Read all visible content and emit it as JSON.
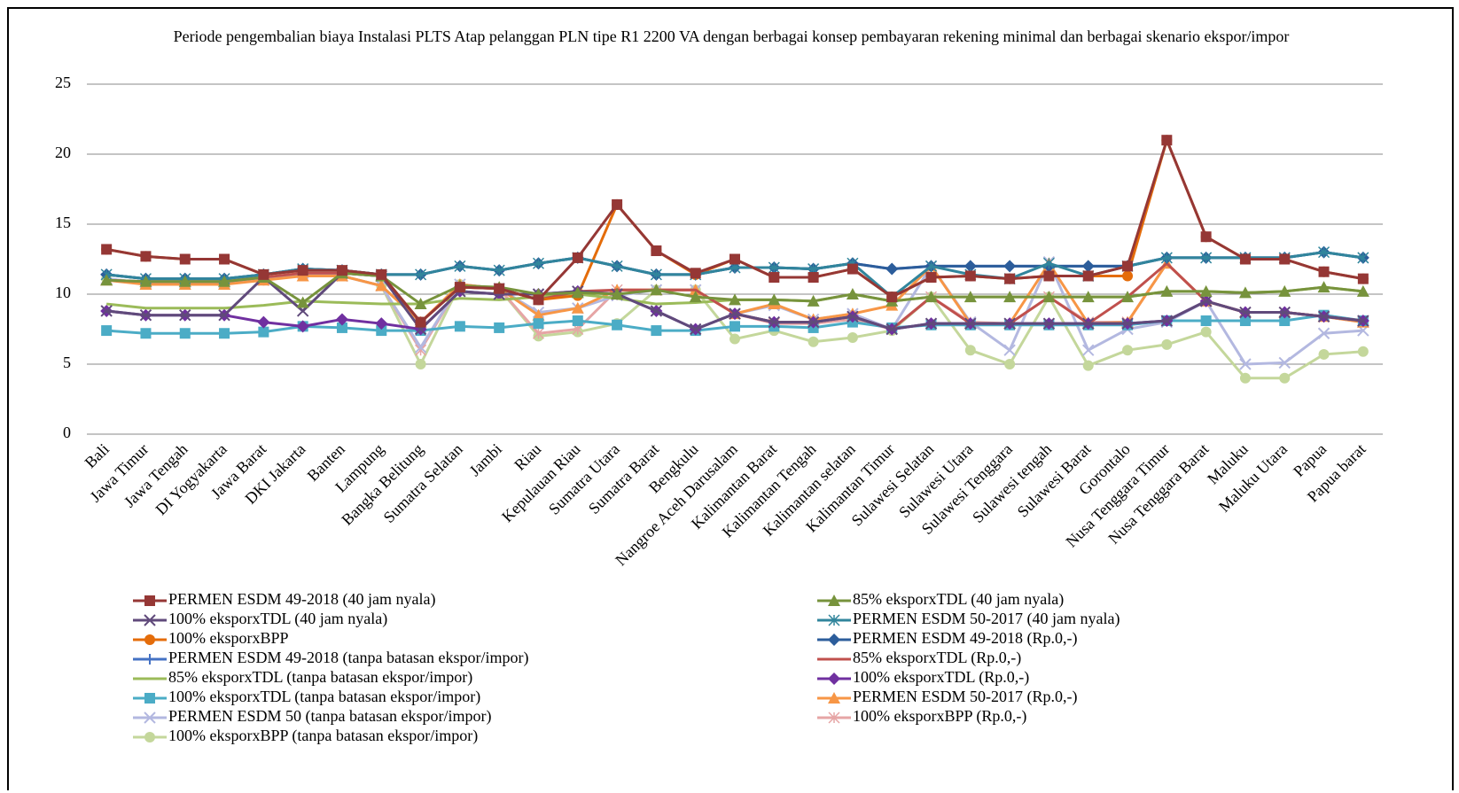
{
  "chart_data": {
    "type": "line",
    "title": "Periode pengembalian  biaya Instalasi  PLTS Atap pelanggan  PLN  tipe R1 2200 VA dengan berbagai konsep pembayaran rekening  minimal  dan berbagai skenario  ekspor/impor",
    "categories": [
      "Bali",
      "Jawa Timur",
      "Jawa Tengah",
      "DI Yogyakarta",
      "Jawa Barat",
      "DKI Jakarta",
      "Banten",
      "Lampung",
      "Bangka Belitung",
      "Sumatra Selatan",
      "Jambi",
      "Riau",
      "Kepulauan Riau",
      "Sumatra Utara",
      "Sumatra Barat",
      "Bengkulu",
      "Nangroe Aceh Darusalam",
      "Kalimantan Barat",
      "Kalimantan Tengah",
      "Kalimantan selatan",
      "Kalimantan Timur",
      "Sulawesi Selatan",
      "Sulawesi Utara",
      "Sulawesi Tenggara",
      "Sulawesi tengah",
      "Sulawesi Barat",
      "Gorontalo",
      "Nusa Tenggara Timur",
      "Nusa Tenggara Barat",
      "Maluku",
      "Maluku Utara",
      "Papua",
      "Papua barat"
    ],
    "ylim": [
      0,
      25
    ],
    "yticks": [
      0,
      5,
      10,
      15,
      20,
      25
    ],
    "grid": true,
    "series": [
      {
        "name": "PERMEN ESDM 49-2018 (40 jam nyala)",
        "color": "#953735",
        "marker": "square",
        "values": [
          13.2,
          12.7,
          12.5,
          12.5,
          11.4,
          11.7,
          11.7,
          11.4,
          8.0,
          10.5,
          10.4,
          9.6,
          12.6,
          16.4,
          13.1,
          11.5,
          12.5,
          11.2,
          11.2,
          11.8,
          9.8,
          11.2,
          11.3,
          11.1,
          11.3,
          11.3,
          12.0,
          21.0,
          14.1,
          12.5,
          12.5,
          11.6,
          11.1
        ]
      },
      {
        "name": "85% eksporxTDL (40 jam nyala)",
        "color": "#77933c",
        "marker": "triangle",
        "values": [
          11.0,
          10.9,
          10.9,
          10.9,
          11.2,
          9.4,
          11.5,
          11.3,
          9.3,
          10.6,
          10.5,
          10.0,
          10.1,
          10.0,
          10.3,
          9.8,
          9.6,
          9.6,
          9.5,
          10.0,
          9.5,
          9.8,
          9.8,
          9.8,
          9.8,
          9.8,
          9.8,
          10.2,
          10.2,
          10.1,
          10.2,
          10.5,
          10.2
        ]
      },
      {
        "name": "100% eksporxTDL (40 jam nyala)",
        "color": "#604a7b",
        "marker": "x",
        "values": [
          8.8,
          8.5,
          8.5,
          8.5,
          11.2,
          8.8,
          11.5,
          11.3,
          7.5,
          10.2,
          10.0,
          10.0,
          10.2,
          10.0,
          8.8,
          7.5,
          8.6,
          8.0,
          8.0,
          8.4,
          7.5,
          7.9,
          7.9,
          7.9,
          7.9,
          7.9,
          7.9,
          8.1,
          9.5,
          8.7,
          8.7,
          8.4,
          8.1
        ]
      },
      {
        "name": "PERMEN ESDM 50-2017 (40 jam nyala)",
        "color": "#31859c",
        "marker": "asterisk",
        "values": [
          11.4,
          11.1,
          11.1,
          11.1,
          11.4,
          11.8,
          11.7,
          11.4,
          11.4,
          12.0,
          11.7,
          12.2,
          12.6,
          12.0,
          11.4,
          11.4,
          11.9,
          11.9,
          11.8,
          12.2,
          9.8,
          12.0,
          11.4,
          11.1,
          12.2,
          11.3,
          12.0,
          12.6,
          12.6,
          12.6,
          12.6,
          13.0,
          12.6
        ]
      },
      {
        "name": "100% eksporxBPP",
        "color": "#e46c0a",
        "marker": "circle",
        "values": [
          13.2,
          12.7,
          12.5,
          12.5,
          11.4,
          11.7,
          11.7,
          11.4,
          8.0,
          10.5,
          10.4,
          9.6,
          9.9,
          16.4,
          13.1,
          11.4,
          12.5,
          11.2,
          11.2,
          11.8,
          9.8,
          11.2,
          11.3,
          11.1,
          11.3,
          11.3,
          11.3,
          21.0,
          14.1,
          12.5,
          12.5,
          11.6,
          11.1
        ]
      },
      {
        "name": "PERMEN ESDM 49-2018 (Rp.0,-)",
        "color": "#2c5d9b",
        "marker": "diamond",
        "values": [
          11.4,
          11.1,
          11.1,
          11.1,
          11.4,
          11.8,
          11.7,
          11.4,
          11.4,
          12.0,
          11.7,
          12.2,
          12.6,
          12.0,
          11.4,
          11.4,
          11.9,
          11.9,
          11.8,
          12.2,
          11.8,
          12.0,
          12.0,
          12.0,
          12.0,
          12.0,
          12.0,
          12.6,
          12.6,
          12.6,
          12.6,
          13.0,
          12.6
        ]
      },
      {
        "name": "PERMEN ESDM 49-2018 (tanpa batasan ekspor/impor)",
        "color": "#4472c4",
        "marker": "plus",
        "values": [
          11.4,
          11.1,
          11.1,
          11.1,
          11.4,
          11.8,
          11.7,
          11.4,
          11.4,
          12.0,
          11.7,
          12.2,
          12.6,
          12.0,
          11.4,
          11.4,
          11.9,
          11.9,
          11.8,
          12.2,
          11.8,
          12.0,
          12.0,
          12.0,
          12.0,
          12.0,
          12.0,
          12.6,
          12.6,
          12.6,
          12.6,
          13.0,
          12.6
        ]
      },
      {
        "name": "85% eksporxTDL (Rp.0,-)",
        "color": "#c0504d",
        "marker": "none",
        "values": [
          11.0,
          10.9,
          10.9,
          10.9,
          11.2,
          11.5,
          11.5,
          11.3,
          8.0,
          10.5,
          10.4,
          9.6,
          10.2,
          10.3,
          10.3,
          10.3,
          8.6,
          8.0,
          8.0,
          8.4,
          7.5,
          9.8,
          7.9,
          7.9,
          9.8,
          7.9,
          9.8,
          12.2,
          9.5,
          8.7,
          8.7,
          8.4,
          8.1
        ]
      },
      {
        "name": "85% eksporxTDL (tanpa batasan ekspor/impor)",
        "color": "#9bbb59",
        "marker": "none",
        "values": [
          9.3,
          9.0,
          9.0,
          9.0,
          9.2,
          9.5,
          9.4,
          9.3,
          9.3,
          9.7,
          9.6,
          9.8,
          10.0,
          9.7,
          9.3,
          9.4,
          9.6,
          9.6,
          9.5,
          10.0,
          9.5,
          9.8,
          9.8,
          9.8,
          9.8,
          9.8,
          9.8,
          10.2,
          10.2,
          10.1,
          10.2,
          10.5,
          10.2
        ]
      },
      {
        "name": "100% eksporxTDL (Rp.0,-)",
        "color": "#7030a0",
        "marker": "diamond",
        "values": [
          8.8,
          8.5,
          8.5,
          8.5,
          8.0,
          7.7,
          8.2,
          7.9,
          7.5,
          10.2,
          10.0,
          10.0,
          10.2,
          10.0,
          8.8,
          7.5,
          8.6,
          8.0,
          8.0,
          8.4,
          7.5,
          7.9,
          7.9,
          7.9,
          7.9,
          7.9,
          7.9,
          8.1,
          9.5,
          8.7,
          8.7,
          8.4,
          8.1
        ]
      },
      {
        "name": "100% eksporxTDL (tanpa batasan ekspor/impor)",
        "color": "#4bacc6",
        "marker": "square",
        "values": [
          7.4,
          7.2,
          7.2,
          7.2,
          7.3,
          7.7,
          7.6,
          7.4,
          7.4,
          7.7,
          7.6,
          7.9,
          8.1,
          7.8,
          7.4,
          7.4,
          7.7,
          7.7,
          7.6,
          8.0,
          7.6,
          7.8,
          7.8,
          7.8,
          7.8,
          7.8,
          7.8,
          8.1,
          8.1,
          8.1,
          8.1,
          8.5,
          8.1
        ]
      },
      {
        "name": "PERMEN ESDM 50-2017 (Rp.0,-)",
        "color": "#f79646",
        "marker": "triangle",
        "values": [
          11.0,
          10.7,
          10.7,
          10.7,
          11.0,
          11.3,
          11.3,
          10.6,
          8.0,
          10.7,
          10.4,
          8.5,
          9.0,
          10.3,
          10.3,
          10.3,
          8.6,
          9.3,
          8.2,
          8.6,
          9.2,
          12.0,
          7.9,
          7.9,
          12.2,
          7.9,
          8.0,
          12.2,
          9.5,
          8.7,
          8.7,
          8.4,
          8.0
        ]
      },
      {
        "name": "PERMEN ESDM 50 (tanpa batasan ekspor/impor)",
        "color": "#b3b8e0",
        "marker": "x",
        "values": [
          11.1,
          10.8,
          10.8,
          10.8,
          11.0,
          11.5,
          11.3,
          10.6,
          6.2,
          10.7,
          10.4,
          8.7,
          9.0,
          9.9,
          10.3,
          10.3,
          8.6,
          9.2,
          8.2,
          8.6,
          7.5,
          12.0,
          8.0,
          6.0,
          12.3,
          6.0,
          7.5,
          8.0,
          9.5,
          5.0,
          5.1,
          7.2,
          7.4
        ]
      },
      {
        "name": "100% eksporxBPP (Rp.0,-)",
        "color": "#e6a5a5",
        "marker": "asterisk",
        "values": [
          11.1,
          10.8,
          10.8,
          10.8,
          11.0,
          11.5,
          11.3,
          10.6,
          6.0,
          10.7,
          10.4,
          7.2,
          7.5,
          10.3,
          10.3,
          10.3,
          8.6,
          7.9,
          7.9,
          8.2,
          7.5,
          9.8,
          8.0,
          7.9,
          9.8,
          8.0,
          8.0,
          12.2,
          9.5,
          8.7,
          8.7,
          8.4,
          8.0
        ]
      },
      {
        "name": "100% eksporxBPP (tanpa batasan ekspor/impor)",
        "color": "#c4d79b",
        "marker": "circle",
        "values": [
          11.1,
          10.8,
          10.8,
          10.8,
          11.0,
          11.5,
          11.3,
          10.6,
          5.0,
          10.7,
          10.4,
          7.0,
          7.3,
          7.9,
          10.3,
          10.3,
          6.8,
          7.4,
          6.6,
          6.9,
          7.4,
          9.8,
          6.0,
          5.0,
          9.8,
          4.9,
          6.0,
          6.4,
          7.3,
          4.0,
          4.0,
          5.7,
          5.9
        ]
      }
    ]
  }
}
